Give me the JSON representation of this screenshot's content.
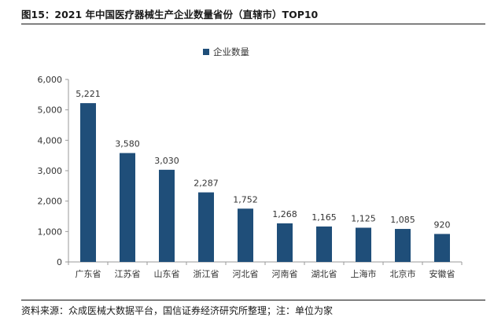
{
  "figure": {
    "title": "图15：2021 年中国医疗器械生产企业数量省份（直辖市）TOP10",
    "source": "资料来源：众成医械大数据平台，国信证券经济研究所整理；注：单位为家"
  },
  "colors": {
    "bar": "#1F4E79",
    "axis": "#9a9a9a"
  },
  "chart_data": {
    "type": "bar",
    "categories": [
      "广东省",
      "江苏省",
      "山东省",
      "浙江省",
      "河北省",
      "河南省",
      "湖北省",
      "上海市",
      "北京市",
      "安徽省"
    ],
    "series": [
      {
        "name": "企业数量",
        "values": [
          5221,
          3580,
          3030,
          2287,
          1752,
          1268,
          1165,
          1125,
          1085,
          920
        ]
      }
    ],
    "data_labels": [
      "5,221",
      "3,580",
      "3,030",
      "2,287",
      "1,752",
      "1,268",
      "1,165",
      "1,125",
      "1,085",
      "920"
    ],
    "yticks": [
      "0",
      "1,000",
      "2,000",
      "3,000",
      "4,000",
      "5,000",
      "6,000"
    ],
    "ylim": [
      0,
      6000
    ],
    "grid": false,
    "legend": "top-center"
  }
}
